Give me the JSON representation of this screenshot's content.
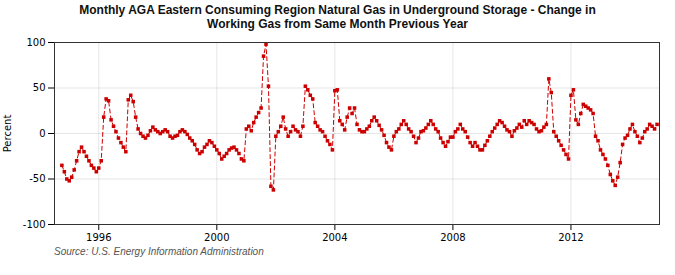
{
  "chart_data": {
    "type": "line",
    "title": "Monthly AGA Eastern Consuming Region Natural Gas in Underground Storage - Change in\nWorking Gas from Same Month Previous Year",
    "ylabel": "Percent",
    "source": "Source: U.S. Energy Information Administration",
    "color": "#CC0000",
    "marker": "square",
    "line_style": "dashed",
    "grid": true,
    "xlim": [
      1994.5,
      2015.0
    ],
    "xticks": [
      1996,
      2000,
      2004,
      2008,
      2012
    ],
    "ylim": [
      -100,
      100
    ],
    "yticks": [
      -100,
      -50,
      0,
      50,
      100
    ],
    "x": [
      1994.75,
      1994.833,
      1994.917,
      1995.0,
      1995.083,
      1995.167,
      1995.25,
      1995.333,
      1995.417,
      1995.5,
      1995.583,
      1995.667,
      1995.75,
      1995.833,
      1995.917,
      1996.0,
      1996.083,
      1996.167,
      1996.25,
      1996.333,
      1996.417,
      1996.5,
      1996.583,
      1996.667,
      1996.75,
      1996.833,
      1996.917,
      1997.0,
      1997.083,
      1997.167,
      1997.25,
      1997.333,
      1997.417,
      1997.5,
      1997.583,
      1997.667,
      1997.75,
      1997.833,
      1997.917,
      1998.0,
      1998.083,
      1998.167,
      1998.25,
      1998.333,
      1998.417,
      1998.5,
      1998.583,
      1998.667,
      1998.75,
      1998.833,
      1998.917,
      1999.0,
      1999.083,
      1999.167,
      1999.25,
      1999.333,
      1999.417,
      1999.5,
      1999.583,
      1999.667,
      1999.75,
      1999.833,
      1999.917,
      2000.0,
      2000.083,
      2000.167,
      2000.25,
      2000.333,
      2000.417,
      2000.5,
      2000.583,
      2000.667,
      2000.75,
      2000.833,
      2000.917,
      2001.0,
      2001.083,
      2001.167,
      2001.25,
      2001.333,
      2001.417,
      2001.5,
      2001.583,
      2001.667,
      2001.75,
      2001.833,
      2001.917,
      2002.0,
      2002.083,
      2002.167,
      2002.25,
      2002.333,
      2002.417,
      2002.5,
      2002.583,
      2002.667,
      2002.75,
      2002.833,
      2002.917,
      2003.0,
      2003.083,
      2003.167,
      2003.25,
      2003.333,
      2003.417,
      2003.5,
      2003.583,
      2003.667,
      2003.75,
      2003.833,
      2003.917,
      2004.0,
      2004.083,
      2004.167,
      2004.25,
      2004.333,
      2004.417,
      2004.5,
      2004.583,
      2004.667,
      2004.75,
      2004.833,
      2004.917,
      2005.0,
      2005.083,
      2005.167,
      2005.25,
      2005.333,
      2005.417,
      2005.5,
      2005.583,
      2005.667,
      2005.75,
      2005.833,
      2005.917,
      2006.0,
      2006.083,
      2006.167,
      2006.25,
      2006.333,
      2006.417,
      2006.5,
      2006.583,
      2006.667,
      2006.75,
      2006.833,
      2006.917,
      2007.0,
      2007.083,
      2007.167,
      2007.25,
      2007.333,
      2007.417,
      2007.5,
      2007.583,
      2007.667,
      2007.75,
      2007.833,
      2007.917,
      2008.0,
      2008.083,
      2008.167,
      2008.25,
      2008.333,
      2008.417,
      2008.5,
      2008.583,
      2008.667,
      2008.75,
      2008.833,
      2008.917,
      2009.0,
      2009.083,
      2009.167,
      2009.25,
      2009.333,
      2009.417,
      2009.5,
      2009.583,
      2009.667,
      2009.75,
      2009.833,
      2009.917,
      2010.0,
      2010.083,
      2010.167,
      2010.25,
      2010.333,
      2010.417,
      2010.5,
      2010.583,
      2010.667,
      2010.75,
      2010.833,
      2010.917,
      2011.0,
      2011.083,
      2011.167,
      2011.25,
      2011.333,
      2011.417,
      2011.5,
      2011.583,
      2011.667,
      2011.75,
      2011.833,
      2011.917,
      2012.0,
      2012.083,
      2012.167,
      2012.25,
      2012.333,
      2012.417,
      2012.5,
      2012.583,
      2012.667,
      2012.75,
      2012.833,
      2012.917,
      2013.0,
      2013.083,
      2013.167,
      2013.25,
      2013.333,
      2013.417,
      2013.5,
      2013.583,
      2013.667,
      2013.75,
      2013.833,
      2013.917,
      2014.0,
      2014.083,
      2014.167,
      2014.25,
      2014.333,
      2014.417,
      2014.5,
      2014.583,
      2014.667,
      2014.75,
      2014.833,
      2014.917
    ],
    "values": [
      -35,
      -42,
      -50,
      -52,
      -48,
      -40,
      -30,
      -20,
      -15,
      -20,
      -25,
      -30,
      -35,
      -38,
      -42,
      -38,
      -30,
      18,
      38,
      36,
      15,
      8,
      2,
      -5,
      -10,
      -15,
      -20,
      37,
      42,
      35,
      18,
      5,
      0,
      -3,
      -5,
      -2,
      3,
      7,
      4,
      2,
      0,
      2,
      4,
      2,
      -3,
      -5,
      -3,
      -2,
      2,
      4,
      2,
      -1,
      -5,
      -8,
      -12,
      -18,
      -22,
      -20,
      -15,
      -12,
      -8,
      -10,
      -14,
      -18,
      -22,
      -28,
      -25,
      -22,
      -18,
      -16,
      -15,
      -18,
      -22,
      -28,
      -30,
      5,
      8,
      3,
      12,
      18,
      23,
      28,
      85,
      98,
      52,
      -58,
      -62,
      -3,
      2,
      8,
      18,
      5,
      -3,
      2,
      8,
      4,
      2,
      -3,
      8,
      52,
      48,
      42,
      38,
      12,
      8,
      4,
      2,
      -3,
      -8,
      -12,
      -18,
      47,
      48,
      14,
      10,
      4,
      18,
      28,
      22,
      28,
      10,
      4,
      2,
      2,
      5,
      8,
      14,
      18,
      14,
      9,
      4,
      -2,
      -10,
      -15,
      -18,
      -3,
      2,
      5,
      10,
      14,
      10,
      5,
      2,
      -3,
      -10,
      -5,
      2,
      3,
      6,
      10,
      14,
      10,
      5,
      2,
      -5,
      -10,
      -14,
      -9,
      -4,
      -4,
      2,
      5,
      10,
      5,
      2,
      -4,
      -10,
      -14,
      -10,
      -14,
      -18,
      -18,
      -13,
      -8,
      -3,
      2,
      6,
      10,
      14,
      12,
      8,
      4,
      2,
      -3,
      3,
      6,
      10,
      7,
      14,
      10,
      14,
      12,
      10,
      5,
      2,
      3,
      7,
      10,
      60,
      45,
      2,
      -3,
      -8,
      -13,
      -18,
      -23,
      -28,
      42,
      48,
      15,
      10,
      22,
      32,
      30,
      28,
      26,
      22,
      -3,
      -8,
      -18,
      -23,
      -28,
      -35,
      -45,
      -52,
      -57,
      -48,
      -32,
      -12,
      -5,
      -2,
      5,
      10,
      2,
      -3,
      -10,
      -5,
      2,
      5,
      10,
      8,
      5,
      10
    ]
  }
}
